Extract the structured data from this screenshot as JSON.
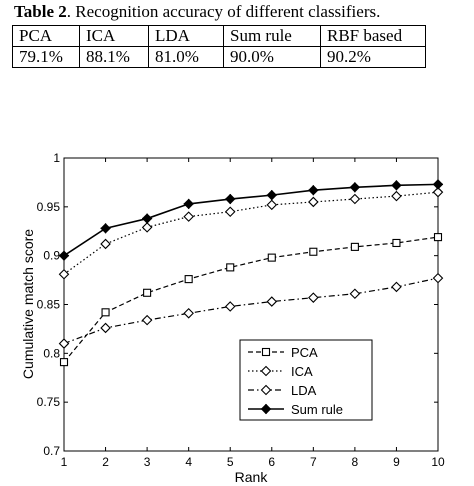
{
  "caption": {
    "label": "Table 2",
    "text": ". Recognition accuracy of different classifiers."
  },
  "table": {
    "headers": [
      "PCA",
      "ICA",
      "LDA",
      "Sum rule",
      "RBF based"
    ],
    "values": [
      "79.1%",
      "88.1%",
      "81.0%",
      "90.0%",
      "90.2%"
    ]
  },
  "chart_data": {
    "type": "line",
    "xlabel": "Rank",
    "ylabel": "Cumulative match score",
    "x": [
      1,
      2,
      3,
      4,
      5,
      6,
      7,
      8,
      9,
      10
    ],
    "xlim": [
      1,
      10
    ],
    "ylim": [
      0.7,
      1.0
    ],
    "xticks": [
      "1",
      "2",
      "3",
      "4",
      "5",
      "6",
      "7",
      "8",
      "9",
      "10"
    ],
    "yticks": [
      "0.7",
      "0.75",
      "0.8",
      "0.85",
      "0.9",
      "0.95",
      "1"
    ],
    "grid": false,
    "legend_position": "bottom-right",
    "series": [
      {
        "name": "PCA",
        "marker": "square",
        "dash": "dashed",
        "values": [
          0.791,
          0.842,
          0.862,
          0.876,
          0.888,
          0.898,
          0.904,
          0.909,
          0.913,
          0.919
        ]
      },
      {
        "name": "ICA",
        "marker": "diamond",
        "dash": "dotted",
        "values": [
          0.881,
          0.912,
          0.929,
          0.94,
          0.945,
          0.952,
          0.955,
          0.958,
          0.961,
          0.965
        ]
      },
      {
        "name": "LDA",
        "marker": "diamond",
        "dash": "dashdot",
        "values": [
          0.81,
          0.826,
          0.834,
          0.841,
          0.848,
          0.853,
          0.857,
          0.861,
          0.868,
          0.877
        ]
      },
      {
        "name": "Sum rule",
        "marker": "star",
        "dash": "solid",
        "values": [
          0.9,
          0.928,
          0.938,
          0.953,
          0.958,
          0.962,
          0.967,
          0.97,
          0.972,
          0.973
        ]
      }
    ]
  }
}
